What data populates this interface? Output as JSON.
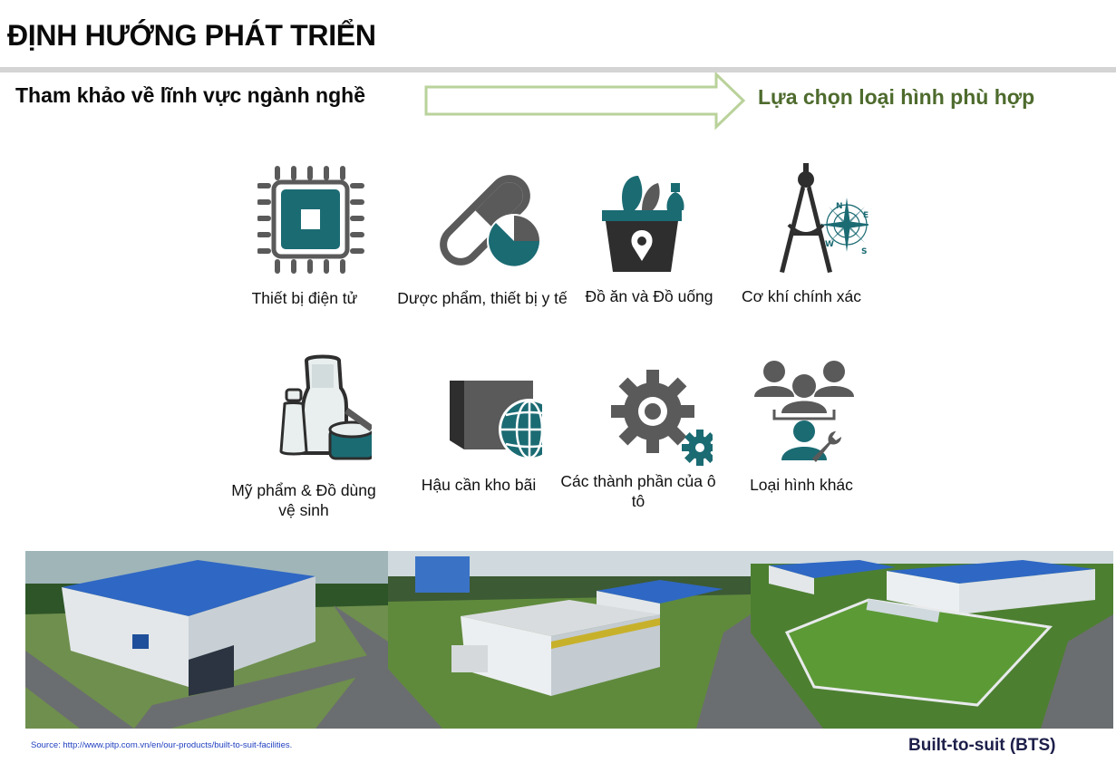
{
  "header": {
    "title": "ĐỊNH HƯỚNG PHÁT TRIỂN"
  },
  "subheader": {
    "left": "Tham khảo về lĩnh vực ngành nghề",
    "right": "Lựa chọn loại hình phù hợp"
  },
  "colors": {
    "teal": "#1b6b73",
    "gray": "#5a5a5a",
    "green": "#4e6b2d",
    "arrow_border": "#b9d29a"
  },
  "industries": [
    {
      "icon": "chip-icon",
      "label": "Thiết bị điện tử"
    },
    {
      "icon": "pill-icon",
      "label": "Dược phẩm, thiết bị y tế"
    },
    {
      "icon": "food-basket-icon",
      "label": "Đồ ăn và Đồ uống"
    },
    {
      "icon": "compass-icon",
      "label": "Cơ khí chính xác"
    },
    {
      "icon": "cosmetics-icon",
      "label": "Mỹ phẩm & Đồ dùng vệ sinh"
    },
    {
      "icon": "logistics-globe-icon",
      "label": "Hậu cần kho bãi"
    },
    {
      "icon": "gears-icon",
      "label": "Các thành phần của ô tô"
    },
    {
      "icon": "people-group-icon",
      "label": "Loại hình khác"
    }
  ],
  "footer": {
    "source": "Source: http://www.pitp.com.vn/en/our-products/built-to-suit-facilities.",
    "bts_label": "Built-to-suit (BTS)"
  }
}
